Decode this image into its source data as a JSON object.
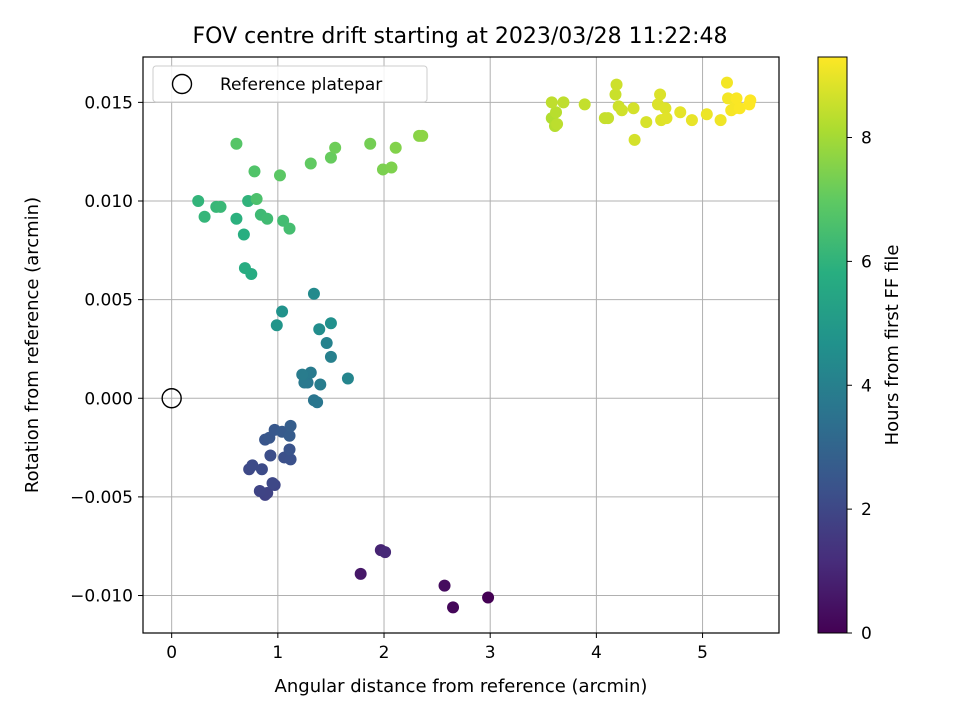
{
  "chart_data": {
    "type": "scatter",
    "title": "FOV centre drift starting at 2023/03/28 11:22:48",
    "xlabel": "Angular distance from reference (arcmin)",
    "ylabel": "Rotation from reference (arcmin)",
    "xlim": [
      -0.27,
      5.72
    ],
    "ylim": [
      -0.0119,
      0.0173
    ],
    "xticks": [
      0,
      1,
      2,
      3,
      4,
      5
    ],
    "xtick_labels": [
      "0",
      "1",
      "2",
      "3",
      "4",
      "5"
    ],
    "yticks": [
      -0.01,
      -0.005,
      0.0,
      0.005,
      0.01,
      0.015
    ],
    "ytick_labels": [
      "−0.010",
      "−0.005",
      "0.000",
      "0.005",
      "0.010",
      "0.015"
    ],
    "grid": true,
    "colormap": "viridis",
    "colorbar": {
      "label": "Hours from first FF file",
      "range": [
        0,
        9.3
      ],
      "ticks": [
        0,
        2,
        4,
        6,
        8
      ],
      "tick_labels": [
        "0",
        "2",
        "4",
        "6",
        "8"
      ]
    },
    "legend": {
      "placement": "upper-left",
      "entries": [
        {
          "label": "Reference platepar",
          "marker": "open-circle"
        }
      ]
    },
    "reference_point": {
      "x": 0.0,
      "y": 0.0
    },
    "series": [
      {
        "x": [
          2.98,
          2.65,
          2.57,
          1.78,
          1.97,
          2.01,
          0.88,
          0.9,
          0.83,
          0.97,
          0.95,
          0.73,
          0.76,
          0.85,
          0.93,
          1.06,
          1.12,
          1.11,
          0.88,
          0.92,
          0.97,
          1.04,
          1.11,
          1.12,
          1.34,
          1.37,
          1.28,
          1.25,
          1.31,
          1.23,
          1.4,
          1.5,
          1.46,
          1.66,
          1.34,
          1.39,
          1.5,
          1.04,
          0.99,
          0.75,
          0.69,
          0.68,
          0.61,
          0.72,
          0.25,
          0.31,
          0.42,
          0.46,
          0.84,
          0.9,
          1.05,
          1.11,
          0.8,
          0.78,
          0.61,
          1.02,
          1.31,
          1.5,
          1.54,
          1.87,
          1.99,
          2.07,
          2.11,
          2.33,
          2.36,
          3.58,
          3.61,
          3.62,
          3.63,
          3.58,
          3.69,
          3.89,
          4.08,
          4.11,
          4.18,
          4.19,
          4.21,
          4.24,
          4.35,
          4.36,
          4.47,
          4.58,
          4.6,
          4.61,
          4.65,
          4.66,
          4.79,
          4.9,
          5.04,
          5.17,
          5.23,
          5.24,
          5.27,
          5.3,
          5.32,
          5.35,
          5.44,
          5.45
        ],
        "y": [
          -0.0101,
          -0.0106,
          -0.0095,
          -0.0089,
          -0.0077,
          -0.0078,
          -0.0049,
          -0.0048,
          -0.0047,
          -0.0044,
          -0.0043,
          -0.0036,
          -0.0034,
          -0.0036,
          -0.0029,
          -0.003,
          -0.0031,
          -0.0026,
          -0.0021,
          -0.002,
          -0.0016,
          -0.0017,
          -0.0019,
          -0.0014,
          -0.0001,
          -0.0002,
          0.0008,
          0.0008,
          0.0013,
          0.0012,
          0.0007,
          0.0021,
          0.0028,
          0.001,
          0.0053,
          0.0035,
          0.0038,
          0.0044,
          0.0037,
          0.0063,
          0.0066,
          0.0083,
          0.0091,
          0.01,
          0.01,
          0.0092,
          0.0097,
          0.0097,
          0.0093,
          0.0091,
          0.009,
          0.0086,
          0.0101,
          0.0115,
          0.0129,
          0.0113,
          0.0119,
          0.0122,
          0.0127,
          0.0129,
          0.0116,
          0.0117,
          0.0127,
          0.0133,
          0.0133,
          0.0142,
          0.0138,
          0.0145,
          0.0139,
          0.015,
          0.015,
          0.0149,
          0.0142,
          0.0142,
          0.0154,
          0.0159,
          0.0148,
          0.0146,
          0.0147,
          0.0131,
          0.014,
          0.0149,
          0.0154,
          0.0141,
          0.0147,
          0.0142,
          0.0145,
          0.0141,
          0.0144,
          0.0141,
          0.016,
          0.0152,
          0.0146,
          0.0147,
          0.0152,
          0.0147,
          0.0149,
          0.0151
        ],
        "hours": [
          0.0,
          0.15,
          0.3,
          0.6,
          0.9,
          1.05,
          1.8,
          1.85,
          1.9,
          1.95,
          2.0,
          2.05,
          2.1,
          2.1,
          2.2,
          2.25,
          2.3,
          2.4,
          2.45,
          2.5,
          2.55,
          2.6,
          2.7,
          2.75,
          3.6,
          3.65,
          3.7,
          3.75,
          3.8,
          3.85,
          3.9,
          4.0,
          4.1,
          4.2,
          4.4,
          4.5,
          4.6,
          4.7,
          4.8,
          5.7,
          5.75,
          5.8,
          5.9,
          6.0,
          6.05,
          6.1,
          6.15,
          6.2,
          6.3,
          6.35,
          6.4,
          6.45,
          6.6,
          6.7,
          6.8,
          6.9,
          7.0,
          7.1,
          7.2,
          7.3,
          7.4,
          7.45,
          7.5,
          7.6,
          7.65,
          8.2,
          8.25,
          8.3,
          8.35,
          8.4,
          8.4,
          8.45,
          8.5,
          8.5,
          8.55,
          8.6,
          8.6,
          8.65,
          8.7,
          8.7,
          8.75,
          8.8,
          8.8,
          8.85,
          8.85,
          8.9,
          8.95,
          9.0,
          9.05,
          9.1,
          9.15,
          9.15,
          9.2,
          9.2,
          9.25,
          9.25,
          9.3,
          9.3
        ]
      }
    ]
  }
}
